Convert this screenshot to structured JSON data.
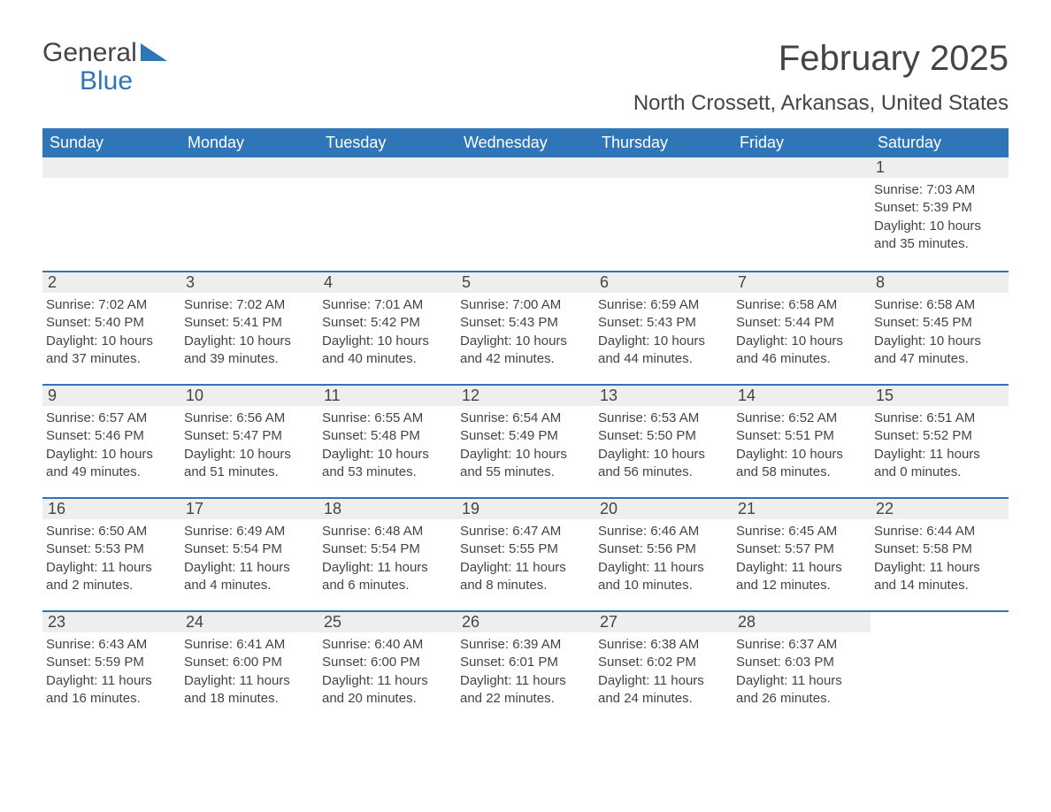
{
  "logo": {
    "general": "General",
    "blue": "Blue",
    "shape_color": "#2f76b8"
  },
  "title": {
    "month": "February 2025",
    "location": "North Crossett, Arkansas, United States"
  },
  "colors": {
    "header_bg": "#2f76b8",
    "header_text": "#ffffff",
    "daynum_bg": "#eeeeee",
    "text": "#444444",
    "border": "#2f76b8",
    "page_bg": "#ffffff"
  },
  "day_headers": [
    "Sunday",
    "Monday",
    "Tuesday",
    "Wednesday",
    "Thursday",
    "Friday",
    "Saturday"
  ],
  "weeks": [
    [
      null,
      null,
      null,
      null,
      null,
      null,
      {
        "n": "1",
        "sunrise": "Sunrise: 7:03 AM",
        "sunset": "Sunset: 5:39 PM",
        "daylight1": "Daylight: 10 hours",
        "daylight2": "and 35 minutes."
      }
    ],
    [
      {
        "n": "2",
        "sunrise": "Sunrise: 7:02 AM",
        "sunset": "Sunset: 5:40 PM",
        "daylight1": "Daylight: 10 hours",
        "daylight2": "and 37 minutes."
      },
      {
        "n": "3",
        "sunrise": "Sunrise: 7:02 AM",
        "sunset": "Sunset: 5:41 PM",
        "daylight1": "Daylight: 10 hours",
        "daylight2": "and 39 minutes."
      },
      {
        "n": "4",
        "sunrise": "Sunrise: 7:01 AM",
        "sunset": "Sunset: 5:42 PM",
        "daylight1": "Daylight: 10 hours",
        "daylight2": "and 40 minutes."
      },
      {
        "n": "5",
        "sunrise": "Sunrise: 7:00 AM",
        "sunset": "Sunset: 5:43 PM",
        "daylight1": "Daylight: 10 hours",
        "daylight2": "and 42 minutes."
      },
      {
        "n": "6",
        "sunrise": "Sunrise: 6:59 AM",
        "sunset": "Sunset: 5:43 PM",
        "daylight1": "Daylight: 10 hours",
        "daylight2": "and 44 minutes."
      },
      {
        "n": "7",
        "sunrise": "Sunrise: 6:58 AM",
        "sunset": "Sunset: 5:44 PM",
        "daylight1": "Daylight: 10 hours",
        "daylight2": "and 46 minutes."
      },
      {
        "n": "8",
        "sunrise": "Sunrise: 6:58 AM",
        "sunset": "Sunset: 5:45 PM",
        "daylight1": "Daylight: 10 hours",
        "daylight2": "and 47 minutes."
      }
    ],
    [
      {
        "n": "9",
        "sunrise": "Sunrise: 6:57 AM",
        "sunset": "Sunset: 5:46 PM",
        "daylight1": "Daylight: 10 hours",
        "daylight2": "and 49 minutes."
      },
      {
        "n": "10",
        "sunrise": "Sunrise: 6:56 AM",
        "sunset": "Sunset: 5:47 PM",
        "daylight1": "Daylight: 10 hours",
        "daylight2": "and 51 minutes."
      },
      {
        "n": "11",
        "sunrise": "Sunrise: 6:55 AM",
        "sunset": "Sunset: 5:48 PM",
        "daylight1": "Daylight: 10 hours",
        "daylight2": "and 53 minutes."
      },
      {
        "n": "12",
        "sunrise": "Sunrise: 6:54 AM",
        "sunset": "Sunset: 5:49 PM",
        "daylight1": "Daylight: 10 hours",
        "daylight2": "and 55 minutes."
      },
      {
        "n": "13",
        "sunrise": "Sunrise: 6:53 AM",
        "sunset": "Sunset: 5:50 PM",
        "daylight1": "Daylight: 10 hours",
        "daylight2": "and 56 minutes."
      },
      {
        "n": "14",
        "sunrise": "Sunrise: 6:52 AM",
        "sunset": "Sunset: 5:51 PM",
        "daylight1": "Daylight: 10 hours",
        "daylight2": "and 58 minutes."
      },
      {
        "n": "15",
        "sunrise": "Sunrise: 6:51 AM",
        "sunset": "Sunset: 5:52 PM",
        "daylight1": "Daylight: 11 hours",
        "daylight2": "and 0 minutes."
      }
    ],
    [
      {
        "n": "16",
        "sunrise": "Sunrise: 6:50 AM",
        "sunset": "Sunset: 5:53 PM",
        "daylight1": "Daylight: 11 hours",
        "daylight2": "and 2 minutes."
      },
      {
        "n": "17",
        "sunrise": "Sunrise: 6:49 AM",
        "sunset": "Sunset: 5:54 PM",
        "daylight1": "Daylight: 11 hours",
        "daylight2": "and 4 minutes."
      },
      {
        "n": "18",
        "sunrise": "Sunrise: 6:48 AM",
        "sunset": "Sunset: 5:54 PM",
        "daylight1": "Daylight: 11 hours",
        "daylight2": "and 6 minutes."
      },
      {
        "n": "19",
        "sunrise": "Sunrise: 6:47 AM",
        "sunset": "Sunset: 5:55 PM",
        "daylight1": "Daylight: 11 hours",
        "daylight2": "and 8 minutes."
      },
      {
        "n": "20",
        "sunrise": "Sunrise: 6:46 AM",
        "sunset": "Sunset: 5:56 PM",
        "daylight1": "Daylight: 11 hours",
        "daylight2": "and 10 minutes."
      },
      {
        "n": "21",
        "sunrise": "Sunrise: 6:45 AM",
        "sunset": "Sunset: 5:57 PM",
        "daylight1": "Daylight: 11 hours",
        "daylight2": "and 12 minutes."
      },
      {
        "n": "22",
        "sunrise": "Sunrise: 6:44 AM",
        "sunset": "Sunset: 5:58 PM",
        "daylight1": "Daylight: 11 hours",
        "daylight2": "and 14 minutes."
      }
    ],
    [
      {
        "n": "23",
        "sunrise": "Sunrise: 6:43 AM",
        "sunset": "Sunset: 5:59 PM",
        "daylight1": "Daylight: 11 hours",
        "daylight2": "and 16 minutes."
      },
      {
        "n": "24",
        "sunrise": "Sunrise: 6:41 AM",
        "sunset": "Sunset: 6:00 PM",
        "daylight1": "Daylight: 11 hours",
        "daylight2": "and 18 minutes."
      },
      {
        "n": "25",
        "sunrise": "Sunrise: 6:40 AM",
        "sunset": "Sunset: 6:00 PM",
        "daylight1": "Daylight: 11 hours",
        "daylight2": "and 20 minutes."
      },
      {
        "n": "26",
        "sunrise": "Sunrise: 6:39 AM",
        "sunset": "Sunset: 6:01 PM",
        "daylight1": "Daylight: 11 hours",
        "daylight2": "and 22 minutes."
      },
      {
        "n": "27",
        "sunrise": "Sunrise: 6:38 AM",
        "sunset": "Sunset: 6:02 PM",
        "daylight1": "Daylight: 11 hours",
        "daylight2": "and 24 minutes."
      },
      {
        "n": "28",
        "sunrise": "Sunrise: 6:37 AM",
        "sunset": "Sunset: 6:03 PM",
        "daylight1": "Daylight: 11 hours",
        "daylight2": "and 26 minutes."
      },
      null
    ]
  ]
}
